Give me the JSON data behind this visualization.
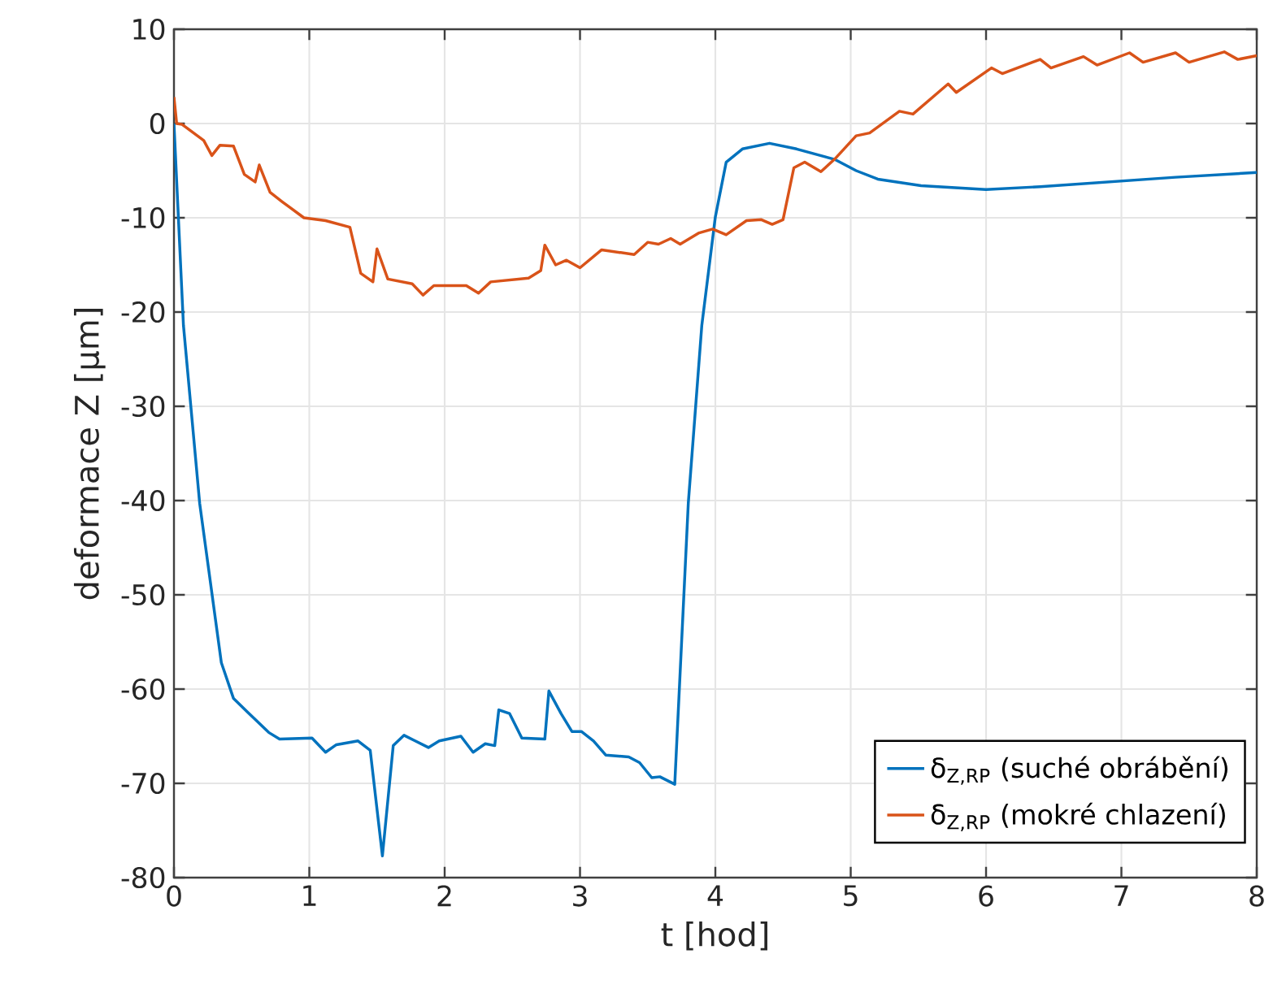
{
  "chart_data": {
    "type": "line",
    "xlabel": "t [hod]",
    "ylabel": "deformace  Z [µm]",
    "xlim": [
      0,
      8
    ],
    "ylim": [
      -80,
      10
    ],
    "xticks": [
      0,
      1,
      2,
      3,
      4,
      5,
      6,
      7,
      8
    ],
    "yticks": [
      -80,
      -70,
      -60,
      -50,
      -40,
      -30,
      -20,
      -10,
      0,
      10
    ],
    "grid": true,
    "legend": "bottom right",
    "series": [
      {
        "name": "δ$_{Z,RP}$ (suché obrábění)",
        "color": "#0072bd",
        "x": [
          0,
          0.07,
          0.19,
          0.35,
          0.44,
          0.54,
          0.7,
          0.78,
          1.02,
          1.12,
          1.2,
          1.36,
          1.45,
          1.54,
          1.62,
          1.7,
          1.88,
          1.96,
          2.12,
          2.21,
          2.3,
          2.37,
          2.4,
          2.48,
          2.57,
          2.74,
          2.77,
          2.86,
          2.94,
          3.01,
          3.1,
          3.19,
          3.36,
          3.44,
          3.53,
          3.59,
          3.7,
          3.8,
          3.9,
          4.0,
          4.08,
          4.2,
          4.4,
          4.6,
          4.88,
          5.04,
          5.2,
          5.52,
          6.0,
          6.4,
          7.0,
          7.4,
          8.0
        ],
        "values": [
          0,
          -21.4,
          -40.3,
          -57.2,
          -61,
          -62.4,
          -64.6,
          -65.3,
          -65.2,
          -66.7,
          -65.9,
          -65.5,
          -66.5,
          -77.7,
          -66,
          -64.9,
          -66.2,
          -65.5,
          -65,
          -66.7,
          -65.8,
          -66,
          -62.2,
          -62.6,
          -65.2,
          -65.3,
          -60.2,
          -62.6,
          -64.5,
          -64.5,
          -65.5,
          -67,
          -67.2,
          -67.8,
          -69.4,
          -69.3,
          -70.1,
          -40.3,
          -21.4,
          -9.9,
          -4.1,
          -2.7,
          -2.1,
          -2.7,
          -3.8,
          -5.0,
          -5.9,
          -6.6,
          -7.0,
          -6.7,
          -6.1,
          -5.7,
          -5.2
        ]
      },
      {
        "name": "δ$_{Z,RP}$ (mokré chlazení)",
        "color": "#d95319",
        "x": [
          0,
          0.02,
          0.06,
          0.22,
          0.28,
          0.34,
          0.44,
          0.52,
          0.6,
          0.63,
          0.71,
          0.8,
          0.96,
          1.12,
          1.3,
          1.38,
          1.47,
          1.5,
          1.58,
          1.76,
          1.84,
          1.92,
          2.16,
          2.25,
          2.34,
          2.62,
          2.71,
          2.74,
          2.82,
          2.9,
          3.0,
          3.16,
          3.4,
          3.5,
          3.58,
          3.67,
          3.74,
          3.88,
          3.98,
          4.08,
          4.23,
          4.34,
          4.42,
          4.5,
          4.58,
          4.66,
          4.78,
          4.88,
          5.04,
          5.14,
          5.36,
          5.46,
          5.72,
          5.78,
          6.04,
          6.12,
          6.4,
          6.48,
          6.72,
          6.82,
          7.06,
          7.16,
          7.4,
          7.5,
          7.76,
          7.86,
          8.0
        ],
        "values": [
          2.8,
          0,
          -0.1,
          -1.8,
          -3.4,
          -2.3,
          -2.4,
          -5.4,
          -6.2,
          -4.4,
          -7.3,
          -8.3,
          -10,
          -10.3,
          -11,
          -15.9,
          -16.8,
          -13.3,
          -16.5,
          -17,
          -18.2,
          -17.2,
          -17.2,
          -18,
          -16.8,
          -16.4,
          -15.6,
          -12.9,
          -15,
          -14.5,
          -15.3,
          -13.4,
          -13.9,
          -12.6,
          -12.8,
          -12.2,
          -12.8,
          -11.6,
          -11.2,
          -11.8,
          -10.3,
          -10.2,
          -10.7,
          -10.2,
          -4.7,
          -4.1,
          -5.1,
          -3.8,
          -1.3,
          -1.0,
          1.3,
          1.0,
          4.2,
          3.3,
          5.9,
          5.3,
          6.8,
          5.9,
          7.1,
          6.2,
          7.5,
          6.5,
          7.5,
          6.5,
          7.6,
          6.8,
          7.2
        ]
      }
    ]
  }
}
